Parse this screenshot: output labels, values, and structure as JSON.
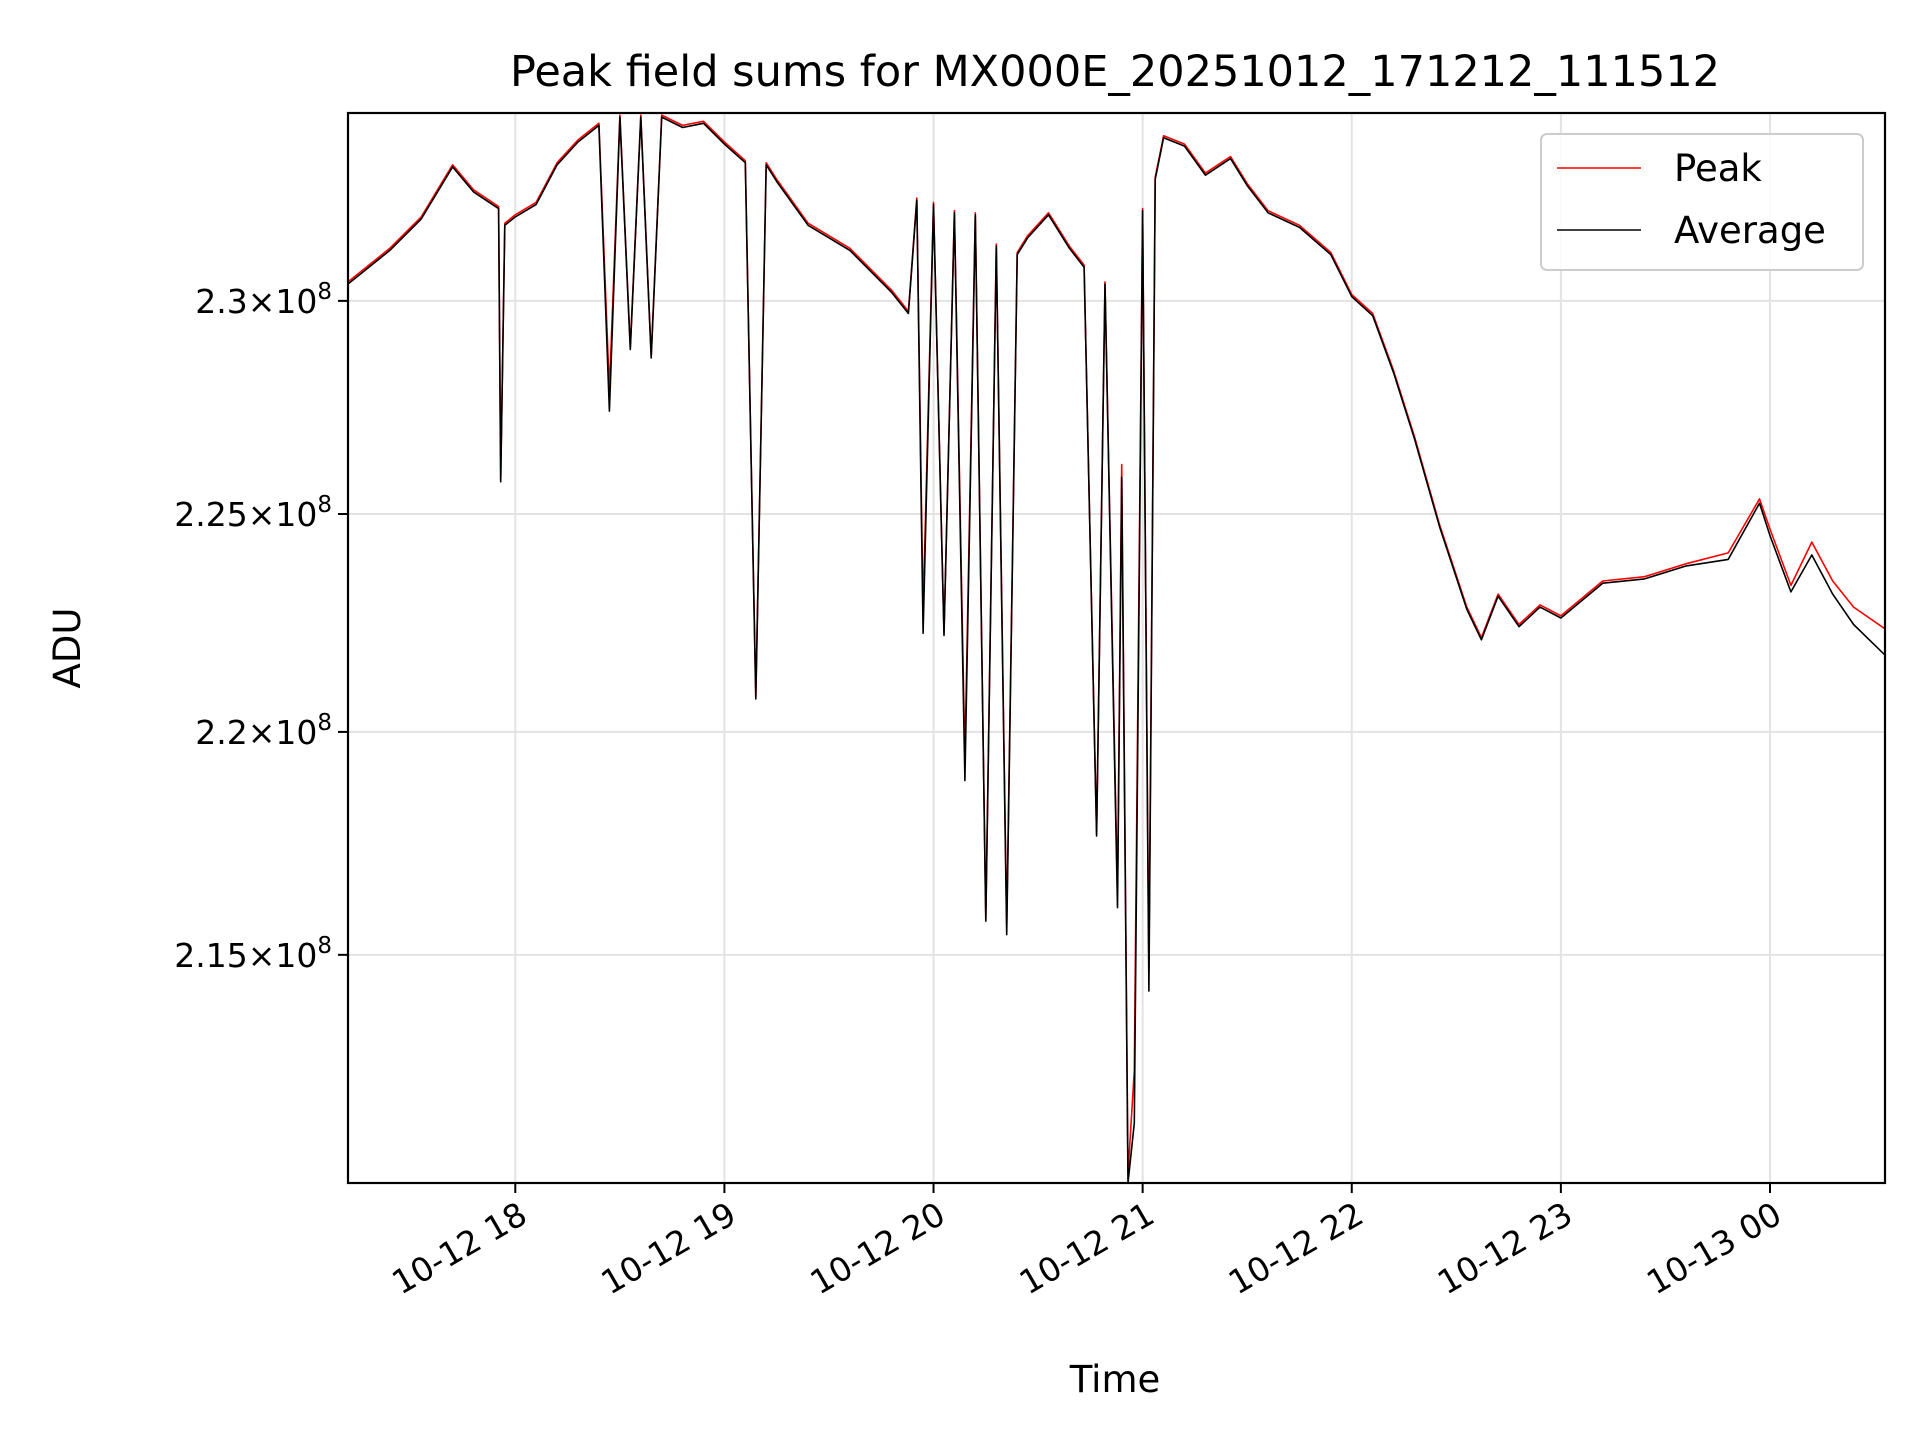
{
  "chart_data": {
    "type": "line",
    "title": "Peak field sums for MX000E_20251012_171212_111512",
    "xlabel": "Time",
    "ylabel": "ADU",
    "yscale": "log",
    "xlim": [
      17.2,
      24.55
    ],
    "ylim": [
      210000000.0,
      234500000.0
    ],
    "x_ticks": [
      {
        "value": 18,
        "label": "10-12 18"
      },
      {
        "value": 19,
        "label": "10-12 19"
      },
      {
        "value": 20,
        "label": "10-12 20"
      },
      {
        "value": 21,
        "label": "10-12 21"
      },
      {
        "value": 22,
        "label": "10-12 22"
      },
      {
        "value": 23,
        "label": "10-12 23"
      },
      {
        "value": 24,
        "label": "10-13 00"
      }
    ],
    "y_ticks": [
      {
        "value": 215000000.0,
        "mantissa": "2.15",
        "base": "10",
        "exponent": "8"
      },
      {
        "value": 220000000.0,
        "mantissa": "2.2",
        "base": "10",
        "exponent": "8"
      },
      {
        "value": 225000000.0,
        "mantissa": "2.25",
        "base": "10",
        "exponent": "8"
      },
      {
        "value": 230000000.0,
        "mantissa": "2.3",
        "base": "10",
        "exponent": "8"
      }
    ],
    "grid": true,
    "legend": {
      "position": "top-right"
    },
    "series": [
      {
        "name": "Peak",
        "color": "#ff0000",
        "x": [
          17.2,
          17.4,
          17.55,
          17.7,
          17.8,
          17.92,
          17.93,
          17.95,
          18.0,
          18.1,
          18.2,
          18.3,
          18.4,
          18.45,
          18.5,
          18.55,
          18.6,
          18.65,
          18.7,
          18.8,
          18.9,
          19.0,
          19.1,
          19.15,
          19.2,
          19.25,
          19.4,
          19.6,
          19.8,
          19.88,
          19.92,
          19.95,
          20.0,
          20.05,
          20.1,
          20.15,
          20.2,
          20.25,
          20.3,
          20.35,
          20.4,
          20.45,
          20.55,
          20.65,
          20.72,
          20.78,
          20.82,
          20.88,
          20.9,
          20.93,
          20.96,
          21.0,
          21.03,
          21.06,
          21.1,
          21.2,
          21.3,
          21.42,
          21.5,
          21.6,
          21.75,
          21.9,
          22.0,
          22.1,
          22.2,
          22.3,
          22.42,
          22.55,
          22.62,
          22.7,
          22.8,
          22.9,
          23.0,
          23.2,
          23.4,
          23.6,
          23.8,
          23.95,
          24.0,
          24.1,
          24.2,
          24.3,
          24.4,
          24.55
        ],
        "y": [
          230450000.0,
          231250000.0,
          232000000.0,
          233250000.0,
          232650000.0,
          232250000.0,
          225800000.0,
          231850000.0,
          232050000.0,
          232350000.0,
          233300000.0,
          233850000.0,
          234250000.0,
          227900000.0,
          234450000.0,
          228900000.0,
          234450000.0,
          228700000.0,
          234450000.0,
          234200000.0,
          234300000.0,
          233800000.0,
          233350000.0,
          220800000.0,
          233300000.0,
          232900000.0,
          231850000.0,
          231250000.0,
          230250000.0,
          229750000.0,
          232450000.0,
          222750000.0,
          232350000.0,
          222250000.0,
          232150000.0,
          219400000.0,
          232100000.0,
          215800000.0,
          231350000.0,
          215650000.0,
          231150000.0,
          231550000.0,
          232100000.0,
          231300000.0,
          230850000.0,
          217700000.0,
          230450000.0,
          216350000.0,
          226150000.0,
          210200000.0,
          212450000.0,
          232200000.0,
          214650000.0,
          232950000.0,
          233950000.0,
          233750000.0,
          233050000.0,
          233450000.0,
          232800000.0,
          232150000.0,
          231800000.0,
          231150000.0,
          230150000.0,
          229700000.0,
          228350000.0,
          226800000.0,
          224750000.0,
          222850000.0,
          222150000.0,
          223150000.0,
          222450000.0,
          222900000.0,
          222650000.0,
          223450000.0,
          223550000.0,
          223850000.0,
          224100000.0,
          225350000.0,
          224650000.0,
          223350000.0,
          224350000.0,
          223450000.0,
          222850000.0,
          222350000.0
        ]
      },
      {
        "name": "Average",
        "color": "#000000",
        "x": [
          17.2,
          17.4,
          17.55,
          17.7,
          17.8,
          17.92,
          17.93,
          17.95,
          18.0,
          18.1,
          18.2,
          18.3,
          18.4,
          18.45,
          18.5,
          18.55,
          18.6,
          18.65,
          18.7,
          18.8,
          18.9,
          19.0,
          19.1,
          19.15,
          19.2,
          19.25,
          19.4,
          19.6,
          19.8,
          19.88,
          19.92,
          19.95,
          20.0,
          20.05,
          20.1,
          20.15,
          20.2,
          20.25,
          20.3,
          20.35,
          20.4,
          20.45,
          20.55,
          20.65,
          20.72,
          20.78,
          20.82,
          20.88,
          20.9,
          20.93,
          20.96,
          21.0,
          21.03,
          21.06,
          21.1,
          21.2,
          21.3,
          21.42,
          21.5,
          21.6,
          21.75,
          21.9,
          22.0,
          22.1,
          22.2,
          22.3,
          22.42,
          22.55,
          22.62,
          22.7,
          22.8,
          22.9,
          23.0,
          23.2,
          23.4,
          23.6,
          23.8,
          23.95,
          24.0,
          24.1,
          24.2,
          24.3,
          24.4,
          24.55
        ],
        "y": [
          230400000.0,
          231200000.0,
          231950000.0,
          233200000.0,
          232600000.0,
          232200000.0,
          225750000.0,
          231800000.0,
          232000000.0,
          232300000.0,
          233250000.0,
          233800000.0,
          234200000.0,
          227400000.0,
          234400000.0,
          228850000.0,
          234400000.0,
          228650000.0,
          234400000.0,
          234150000.0,
          234250000.0,
          233750000.0,
          233300000.0,
          220750000.0,
          233250000.0,
          232850000.0,
          231800000.0,
          231200000.0,
          230200000.0,
          229700000.0,
          232400000.0,
          222250000.0,
          232300000.0,
          222200000.0,
          232100000.0,
          218900000.0,
          232050000.0,
          215750000.0,
          231300000.0,
          215450000.0,
          231100000.0,
          231500000.0,
          232050000.0,
          231250000.0,
          230800000.0,
          217650000.0,
          230400000.0,
          216050000.0,
          225850000.0,
          210000000.0,
          211300000.0,
          232150000.0,
          214200000.0,
          232900000.0,
          233900000.0,
          233700000.0,
          233000000.0,
          233400000.0,
          232750000.0,
          232100000.0,
          231750000.0,
          231100000.0,
          230100000.0,
          229650000.0,
          228300000.0,
          226750000.0,
          224700000.0,
          222800000.0,
          222100000.0,
          223100000.0,
          222400000.0,
          222850000.0,
          222600000.0,
          223400000.0,
          223500000.0,
          223800000.0,
          223950000.0,
          225250000.0,
          224500000.0,
          223200000.0,
          224050000.0,
          223150000.0,
          222450000.0,
          221750000.0
        ]
      }
    ]
  }
}
